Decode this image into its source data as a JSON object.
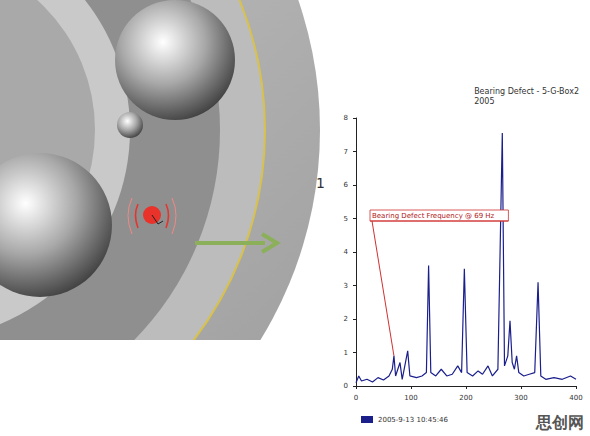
{
  "chart_data": {
    "type": "line",
    "title": "Bearing Defect - 5-G-Box2",
    "subtitle": "2005",
    "x": [
      0,
      5,
      10,
      20,
      30,
      40,
      50,
      60,
      66,
      69,
      72,
      80,
      84,
      94,
      98,
      110,
      120,
      128,
      132,
      136,
      145,
      155,
      165,
      175,
      185,
      192,
      197,
      202,
      212,
      222,
      230,
      240,
      248,
      258,
      266,
      270,
      276,
      280,
      284,
      288,
      292,
      296,
      305,
      315,
      325,
      331,
      336,
      345,
      360,
      375,
      390,
      400
    ],
    "series": [
      {
        "name": "2005-9-13 10:45:46",
        "color": "#1a1f8c",
        "values": [
          0.1,
          0.3,
          0.15,
          0.2,
          0.12,
          0.25,
          0.18,
          0.3,
          0.5,
          0.9,
          0.3,
          0.7,
          0.2,
          1.05,
          0.3,
          0.25,
          0.3,
          0.4,
          3.6,
          0.4,
          0.3,
          0.5,
          0.3,
          0.35,
          0.6,
          0.4,
          3.5,
          0.4,
          0.3,
          0.45,
          0.35,
          0.6,
          0.3,
          0.5,
          7.55,
          0.6,
          0.9,
          1.95,
          0.7,
          0.5,
          0.9,
          0.4,
          0.3,
          0.35,
          0.4,
          3.1,
          0.3,
          0.2,
          0.25,
          0.2,
          0.3,
          0.2
        ]
      }
    ],
    "xlim": [
      0,
      400
    ],
    "xticks": [
      0,
      100,
      200,
      300,
      400
    ],
    "ylim": [
      0,
      8
    ],
    "yticks": [
      0,
      1,
      2,
      3,
      4,
      5,
      6,
      7,
      8
    ],
    "grid": false,
    "legend": "bottom",
    "annotations": [
      {
        "text": "Bearing Defect Frequency @ 69 Hz",
        "x": 69,
        "y": 0.9
      },
      {
        "text": "1"
      },
      {
        "text": "思创网"
      }
    ]
  }
}
